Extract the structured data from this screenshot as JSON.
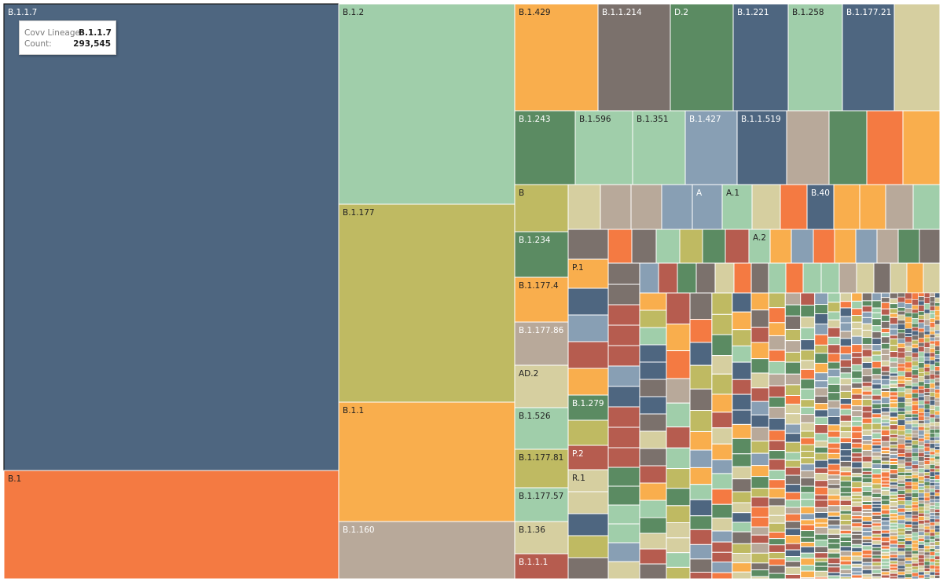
{
  "chart_data": {
    "type": "treemap",
    "measure": "Count",
    "dimension": "Covv Lineage",
    "labeled_cells": [
      {
        "name": "B.1.1.7",
        "value": 293545,
        "color": "#4e6680"
      },
      {
        "name": "B.1",
        "color": "#f47a42"
      },
      {
        "name": "B.1.2",
        "color": "#a0ceaa"
      },
      {
        "name": "B.1.177",
        "color": "#bfba62"
      },
      {
        "name": "B.1.1",
        "color": "#f9ae4d"
      },
      {
        "name": "B.1.160",
        "color": "#b8a99a"
      },
      {
        "name": "B.1.429",
        "color": "#f9ae4d"
      },
      {
        "name": "B.1.1.214",
        "color": "#7b716c"
      },
      {
        "name": "D.2",
        "color": "#5b8b62"
      },
      {
        "name": "B.1.221",
        "color": "#4e6680"
      },
      {
        "name": "B.1.258",
        "color": "#a0ceaa"
      },
      {
        "name": "B.1.177.21",
        "color": "#4e6680"
      },
      {
        "name": "B.1.243",
        "color": "#5b8b62"
      },
      {
        "name": "B.1.596",
        "color": "#a0ceaa"
      },
      {
        "name": "B.1.351",
        "color": "#a0ceaa"
      },
      {
        "name": "B.1.427",
        "color": "#889fb4"
      },
      {
        "name": "B.1.1.519",
        "color": "#4e6680"
      },
      {
        "name": "B",
        "color": "#bfba62"
      },
      {
        "name": "A",
        "color": "#889fb4"
      },
      {
        "name": "A.1",
        "color": "#a0ceaa"
      },
      {
        "name": "B.40",
        "color": "#4e6680"
      },
      {
        "name": "A.2",
        "color": "#a0ceaa"
      },
      {
        "name": "B.1.234",
        "color": "#5b8b62"
      },
      {
        "name": "P.1",
        "color": "#f9ae4d"
      },
      {
        "name": "B.1.177.4",
        "color": "#f9ae4d"
      },
      {
        "name": "B.1.177.86",
        "color": "#b8a99a"
      },
      {
        "name": "AD.2",
        "color": "#d6cfa0"
      },
      {
        "name": "B.1.279",
        "color": "#5b8b62"
      },
      {
        "name": "B.1.526",
        "color": "#a0ceaa"
      },
      {
        "name": "P.2",
        "color": "#b65c4f"
      },
      {
        "name": "B.1.177.81",
        "color": "#bfba62"
      },
      {
        "name": "R.1",
        "color": "#d6cfa0"
      },
      {
        "name": "B.1.177.57",
        "color": "#a0ceaa"
      },
      {
        "name": "B.1.36",
        "color": "#d6cfa0"
      },
      {
        "name": "B.1.1.1",
        "color": "#b65c4f"
      }
    ],
    "palette": [
      "#4e6680",
      "#f47a42",
      "#a0ceaa",
      "#bfba62",
      "#f9ae4d",
      "#b8a99a",
      "#7b716c",
      "#5b8b62",
      "#889fb4",
      "#d6cfa0",
      "#b65c4f"
    ]
  },
  "tooltip": {
    "key1": "Covv Lineage:",
    "val1": "B.1.1.7",
    "key2": "Count:",
    "val2": "293,545"
  }
}
